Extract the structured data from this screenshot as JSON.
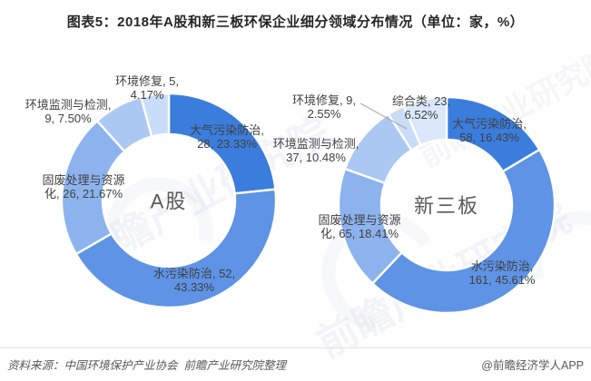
{
  "title": "图表5：2018年A股和新三板环保企业细分领域分布情况（单位：家，%）",
  "footer": {
    "source": "资料来源：中国环境保护产业协会  前瞻产业研究院整理",
    "credit": "@前瞻经济学人APP"
  },
  "watermark": {
    "brand": "前瞻产业研究院"
  },
  "chart_data": [
    {
      "type": "pie",
      "subtype": "donut",
      "center_label": "A股",
      "unit": "家, %",
      "legend_position": "none",
      "slices": [
        {
          "label": "大气污染防治",
          "value": 28,
          "pct": 23.33,
          "color": "#3b7ddd",
          "label_lines": [
            "大气污染防治,",
            "28, 23.33%"
          ],
          "label_placement": "inside"
        },
        {
          "label": "水污染防治",
          "value": 52,
          "pct": 43.33,
          "color": "#5e93e6",
          "label_lines": [
            "水污染防治, 52,",
            "43.33%"
          ],
          "label_placement": "inside"
        },
        {
          "label": "固废处理与资源化",
          "value": 26,
          "pct": 21.67,
          "color": "#8db3ee",
          "label_lines": [
            "固废处理与资源",
            "化, 26, 21.67%"
          ],
          "label_placement": "outside"
        },
        {
          "label": "环境监测与检测",
          "value": 9,
          "pct": 7.5,
          "color": "#abc8f3",
          "label_lines": [
            "环境监测与检测,",
            "9, 7.50%"
          ],
          "label_placement": "outside"
        },
        {
          "label": "环境修复",
          "value": 5,
          "pct": 4.17,
          "color": "#c9dcf8",
          "label_lines": [
            "环境修复, 5,",
            "4.17%"
          ],
          "label_placement": "outside"
        }
      ]
    },
    {
      "type": "pie",
      "subtype": "donut",
      "center_label": "新三板",
      "unit": "家, %",
      "legend_position": "none",
      "slices": [
        {
          "label": "大气污染防治",
          "value": 58,
          "pct": 16.43,
          "color": "#3b7ddd",
          "label_lines": [
            "大气污染防治,",
            "58, 16.43%"
          ],
          "label_placement": "inside"
        },
        {
          "label": "水污染防治",
          "value": 161,
          "pct": 45.61,
          "color": "#5e93e6",
          "label_lines": [
            "水污染防治,",
            "161, 45.61%"
          ],
          "label_placement": "inside"
        },
        {
          "label": "固废处理与资源化",
          "value": 65,
          "pct": 18.41,
          "color": "#8db3ee",
          "label_lines": [
            "固废处理与资源",
            "化, 65, 18.41%"
          ],
          "label_placement": "outside"
        },
        {
          "label": "环境监测与检测",
          "value": 37,
          "pct": 10.48,
          "color": "#abc8f3",
          "label_lines": [
            "环境监测与检测,",
            "37, 10.48%"
          ],
          "label_placement": "outside"
        },
        {
          "label": "环境修复",
          "value": 9,
          "pct": 2.55,
          "color": "#c9dcf8",
          "label_lines": [
            "环境修复, 9,",
            "2.55%"
          ],
          "label_placement": "outside"
        },
        {
          "label": "综合类",
          "value": 23,
          "pct": 6.52,
          "color": "#dbe7fb",
          "label_lines": [
            "综合类, 23,",
            "6.52%"
          ],
          "label_placement": "outside"
        }
      ]
    }
  ],
  "style": {
    "slice_border_color": "#ffffff",
    "label_color": "#404040",
    "center_label_color": "#595959",
    "leader_line_color": "#a6a6a6"
  }
}
